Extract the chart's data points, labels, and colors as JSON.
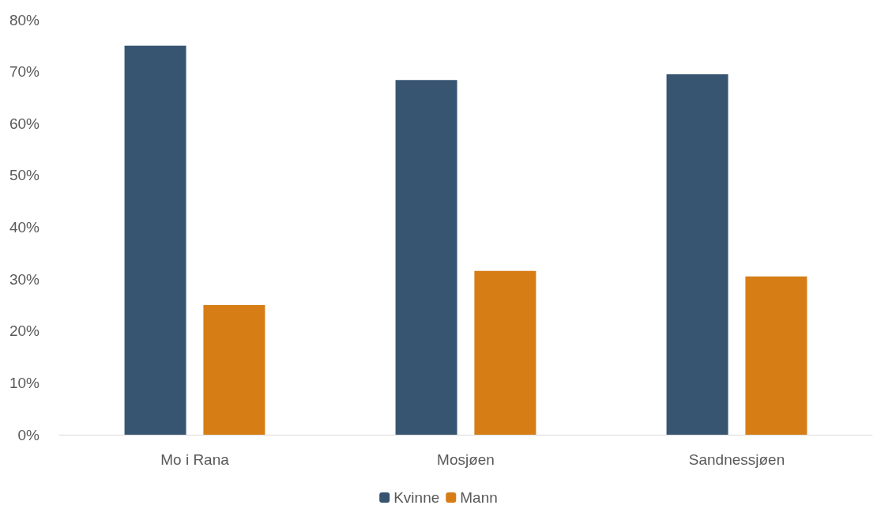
{
  "chart_data": {
    "type": "bar",
    "categories": [
      "Mo i Rana",
      "Mosjøen",
      "Sandnessjøen"
    ],
    "series": [
      {
        "name": "Kvinne",
        "color": "#375571",
        "values": [
          75,
          68.4,
          69.5
        ]
      },
      {
        "name": "Mann",
        "color": "#d67d16",
        "values": [
          25,
          31.6,
          30.5
        ]
      }
    ],
    "ylim": [
      0,
      80
    ],
    "yticks": [
      {
        "value": 0,
        "label": "0%"
      },
      {
        "value": 10,
        "label": "10%"
      },
      {
        "value": 20,
        "label": "20%"
      },
      {
        "value": 30,
        "label": "30%"
      },
      {
        "value": 40,
        "label": "40%"
      },
      {
        "value": 50,
        "label": "50%"
      },
      {
        "value": 60,
        "label": "60%"
      },
      {
        "value": 70,
        "label": "70%"
      },
      {
        "value": 80,
        "label": "80%"
      }
    ],
    "grid": false,
    "legend": "bottom"
  }
}
